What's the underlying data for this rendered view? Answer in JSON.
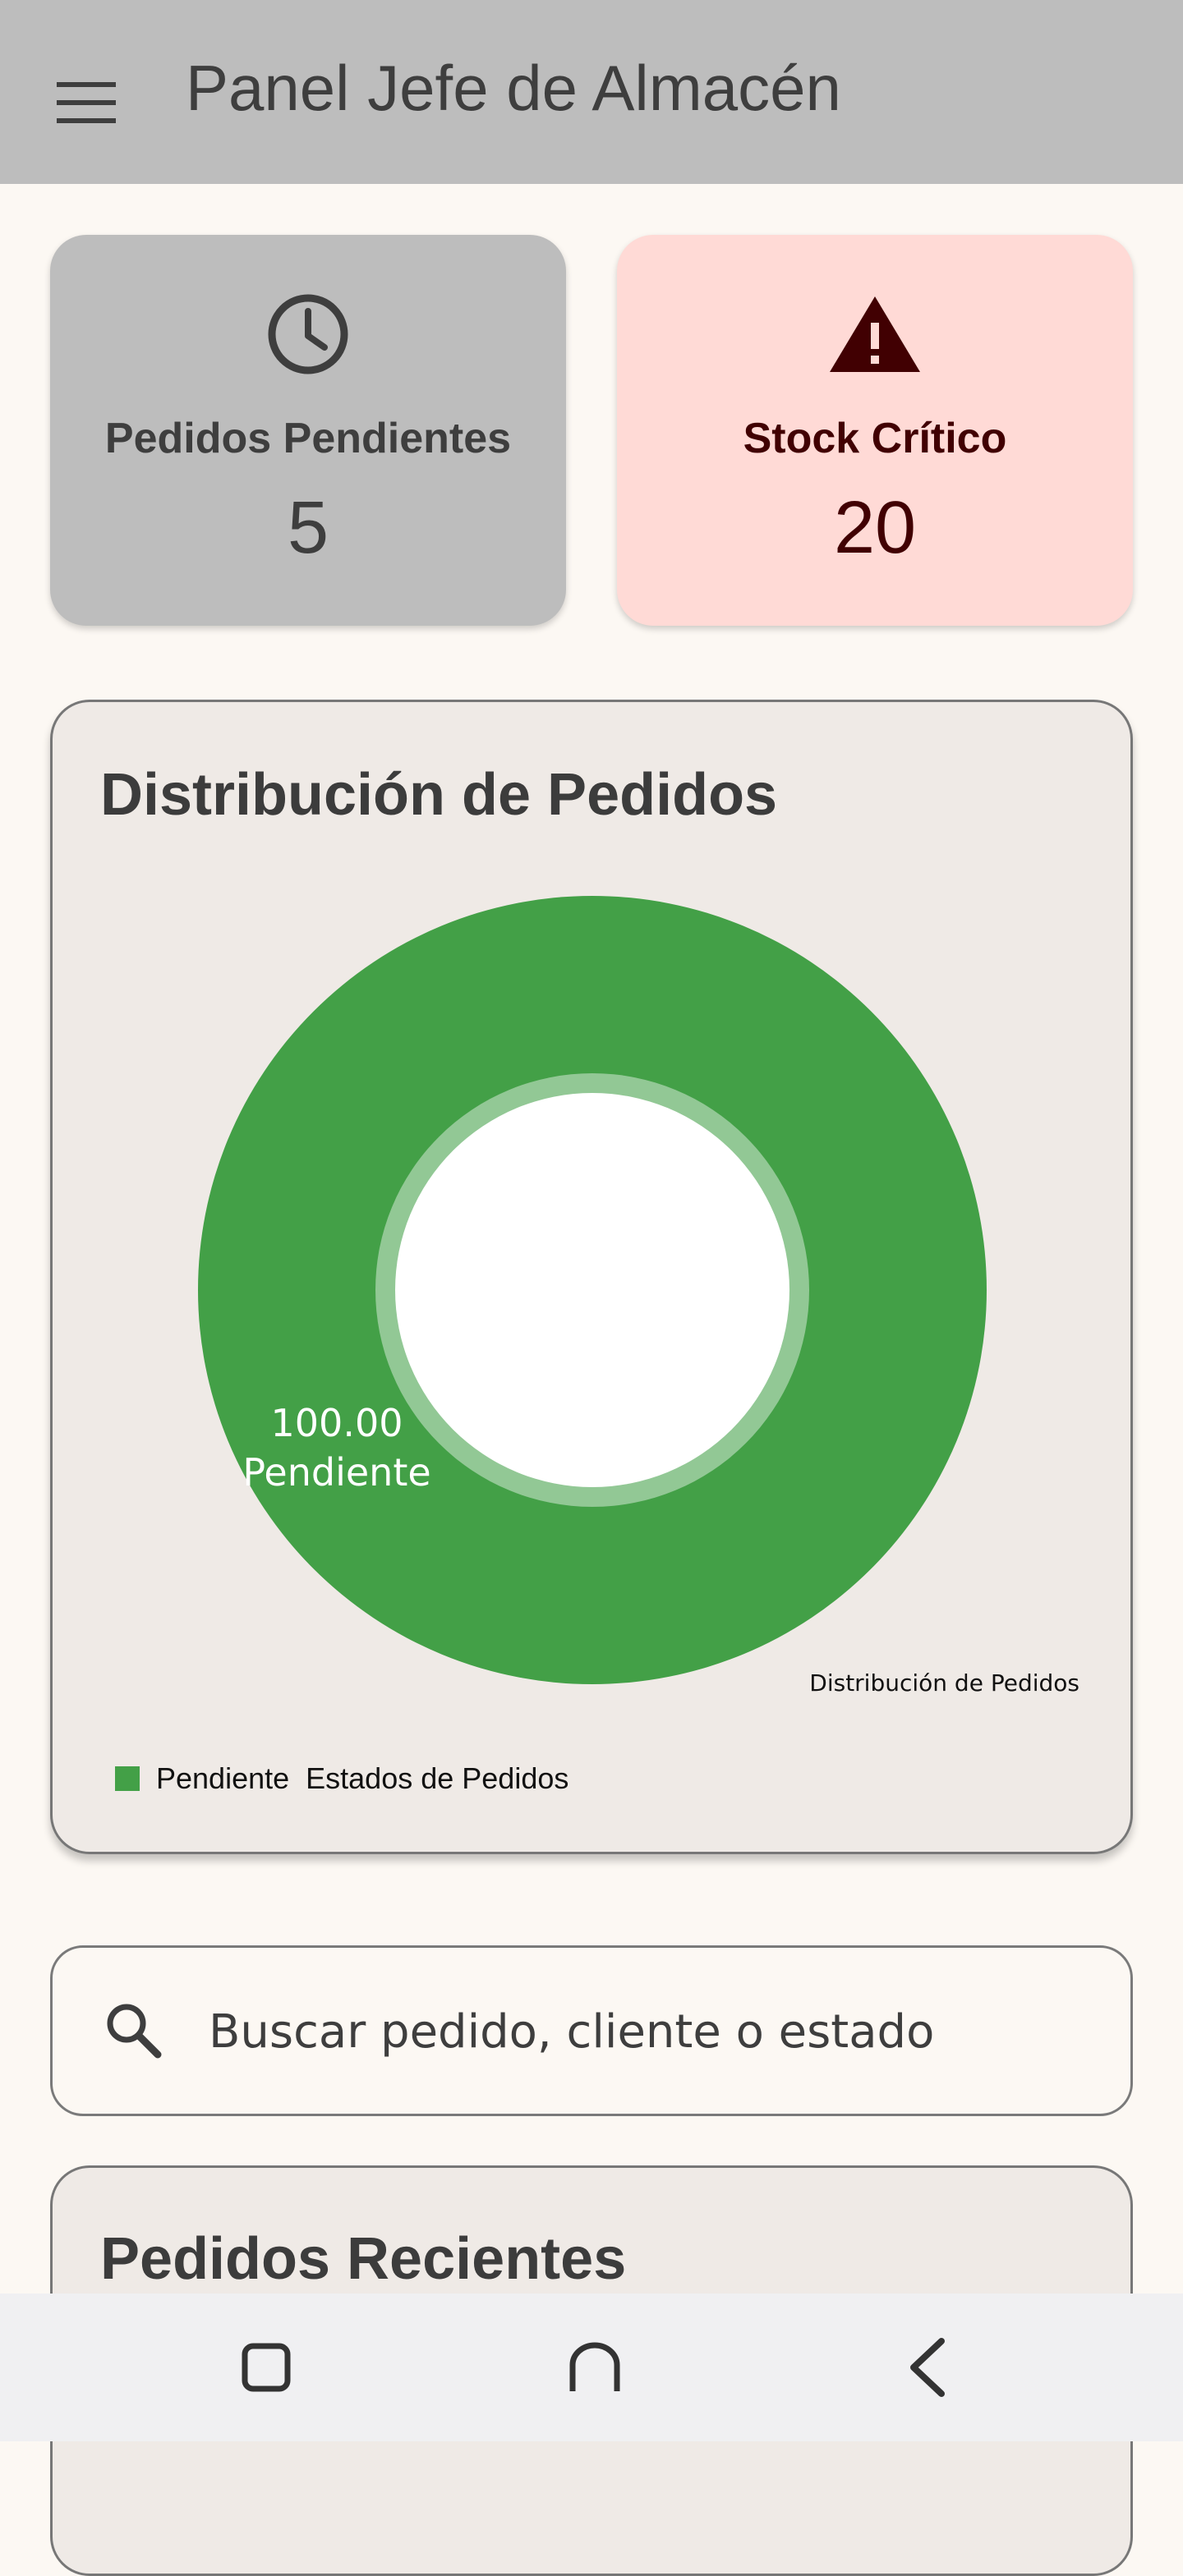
{
  "appbar": {
    "title": "Panel Jefe de Almacén",
    "menu_icon": "menu-icon"
  },
  "stats": {
    "pending": {
      "icon": "clock-icon",
      "label": "Pedidos Pendientes",
      "value": "5",
      "bg": "#bdbdbd",
      "fg": "#3e3e3e"
    },
    "critical": {
      "icon": "warning-icon",
      "label": "Stock Crítico",
      "value": "20",
      "bg": "#ffdad6",
      "fg": "#410002"
    }
  },
  "chart_card": {
    "title": "Distribución de Pedidos"
  },
  "chart_data": {
    "type": "pie",
    "style": "donut",
    "title": "Distribución de Pedidos",
    "categories": [
      "Pendiente"
    ],
    "values": [
      100.0
    ],
    "value_labels": [
      "100.00"
    ],
    "series_name": "Estados de Pedidos",
    "colors": [
      "#43a047"
    ],
    "legend_position": "bottom-left",
    "grid": false
  },
  "search": {
    "placeholder": "Buscar pedido, cliente o estado",
    "icon": "search-icon"
  },
  "recent": {
    "title": "Pedidos Recientes"
  },
  "navbar": {
    "recents_icon": "square-icon",
    "home_icon": "home-icon",
    "back_icon": "back-chevron-icon"
  }
}
